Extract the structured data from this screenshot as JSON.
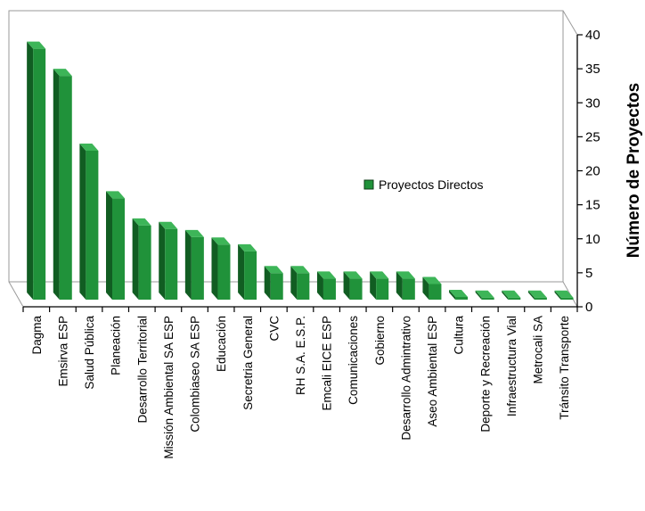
{
  "chart_data": {
    "type": "bar",
    "title": "",
    "xlabel": "",
    "ylabel": "Número de Proyectos",
    "ylim": [
      0,
      40
    ],
    "yticks": [
      0,
      5,
      10,
      15,
      20,
      25,
      30,
      35,
      40
    ],
    "categories": [
      "Dagma",
      "Emsirva ESP",
      "Salud Pública",
      "Planeación",
      "Desarrollo Territorial",
      "Missión Ambiental SA ESP",
      "Colombiaseo SA ESP",
      "Educación",
      "Secretria General",
      "CVC",
      "RH S.A. E.S.P.",
      "Emcali EICE ESP",
      "Comunicaciones",
      "Gobierno",
      "Desarrollo Admintrativo",
      "Aseo Ambiental ESP",
      "Cultura",
      "Deporte y Recreación",
      "Infraestructura Vial",
      "Metrocali SA",
      "Tránsito Transporte"
    ],
    "series": [
      {
        "name": "Proyectos Directos",
        "values": [
          39,
          35,
          24,
          17,
          13,
          12.5,
          11.3,
          10.2,
          9.2,
          6,
          6,
          5.2,
          5.2,
          5.2,
          5.2,
          4.4,
          2.5,
          2.4,
          2.4,
          2.4,
          2.4
        ]
      }
    ],
    "legend_position": "right",
    "grid": false,
    "colors": {
      "bar_front": "#20923A",
      "bar_side": "#115D22",
      "bar_top": "#3DB558",
      "wall": "#9A9A9A"
    }
  }
}
